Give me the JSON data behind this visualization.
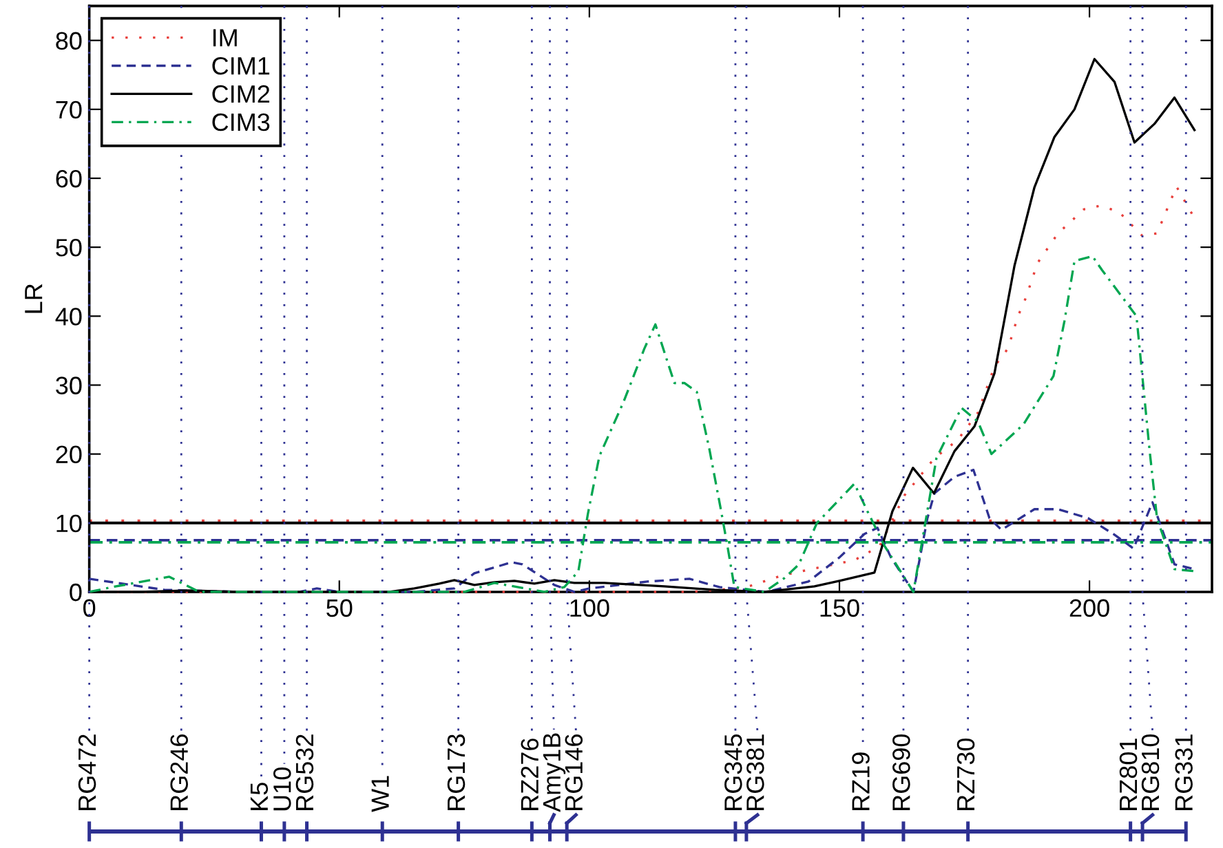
{
  "chart_data": {
    "type": "line",
    "ylabel": "LR",
    "xlim": [
      0,
      224.5
    ],
    "ylim": [
      0,
      85
    ],
    "xticks": [
      0,
      50,
      100,
      150,
      200
    ],
    "yticks": [
      0,
      10,
      20,
      30,
      40,
      50,
      60,
      70,
      80
    ],
    "grid": false,
    "legend": "top left",
    "series": [
      {
        "name": "IM",
        "color": "#e8403c",
        "line_style": "dotted",
        "x": [
          0,
          20,
          40,
          60,
          80,
          100,
          120,
          131,
          138.6,
          145,
          153,
          158,
          163,
          169,
          173.6,
          177.7,
          181,
          183.7,
          185.7,
          187.3,
          189.6,
          193.7,
          198.9,
          202,
          205.8,
          210.5,
          213.5,
          217.4,
          221
        ],
        "values": [
          0,
          0,
          0,
          0,
          0,
          0,
          0,
          0.6,
          2.4,
          3.4,
          4.6,
          6.6,
          14,
          19.4,
          22,
          26,
          32.7,
          35.3,
          40,
          42.7,
          47.7,
          52,
          55.5,
          56,
          55.2,
          51.7,
          52,
          58.8,
          54.2
        ]
      },
      {
        "name": "CIM1",
        "color": "#2e3192",
        "line_style": "dashed",
        "x": [
          0,
          15,
          30,
          42,
          45.5,
          50,
          65,
          73,
          77,
          84.5,
          86.6,
          93,
          97,
          100,
          111.6,
          120,
          126,
          135.5,
          143.8,
          150,
          155,
          157.6,
          160.3,
          164.8,
          167.6,
          169,
          173,
          176.8,
          180,
          182.4,
          189,
          193.7,
          199.7,
          205,
          208.8,
          212.6,
          214.4,
          217,
          221
        ],
        "values": [
          1.9,
          0.3,
          0,
          0,
          0.5,
          0,
          0,
          0.5,
          2.7,
          4.3,
          4,
          1,
          0,
          0.5,
          1.5,
          1.9,
          0.7,
          0,
          1.5,
          5,
          8.4,
          9.3,
          5,
          0,
          10.7,
          14.3,
          16.7,
          17.7,
          10.7,
          9,
          12,
          12,
          10.7,
          8.3,
          6.3,
          13,
          9.3,
          4,
          3.3
        ]
      },
      {
        "name": "CIM2",
        "color": "#000000",
        "line_style": "solid",
        "x": [
          0,
          10,
          20,
          30,
          40,
          50,
          60,
          65,
          70,
          73,
          77,
          81,
          85,
          89,
          93,
          97,
          103,
          115,
          125,
          135,
          145,
          150,
          157,
          160.6,
          164.7,
          168.9,
          173,
          177,
          181,
          185,
          189,
          193,
          197,
          201,
          205,
          209,
          213,
          217,
          221
        ],
        "values": [
          0,
          0,
          0.2,
          0,
          0,
          0,
          0,
          0.5,
          1.2,
          1.7,
          1,
          1.4,
          1.6,
          1.2,
          1.7,
          1.3,
          1.3,
          0.8,
          0.3,
          0,
          0.8,
          1.6,
          2.8,
          11.7,
          18,
          14.3,
          20.4,
          24,
          31.7,
          47.3,
          58.7,
          66,
          70,
          77.3,
          74,
          65.2,
          67.9,
          71.7,
          67
        ]
      },
      {
        "name": "CIM3",
        "color": "#00a651",
        "line_style": "dashdot",
        "x": [
          0,
          4.6,
          16,
          22,
          40,
          60,
          75,
          81,
          91,
          95,
          97.8,
          99.7,
          102,
          106.8,
          111,
          113.2,
          117,
          119,
          121.5,
          124,
          126.2,
          127.6,
          129,
          135,
          139,
          141.9,
          145.5,
          153,
          155.6,
          159,
          164.8,
          169.4,
          174.4,
          177.7,
          180.4,
          186.8,
          192.8,
          195,
          197,
          200.6,
          202.5,
          209.4,
          212,
          213.5,
          217,
          221
        ],
        "values": [
          0,
          0.7,
          2.2,
          0,
          0,
          0,
          0,
          1.3,
          0,
          0.7,
          3,
          11.3,
          19.7,
          27.5,
          35.3,
          38.8,
          30.3,
          30.3,
          29,
          20.7,
          12.3,
          6.7,
          0.7,
          0,
          2,
          4,
          10,
          15.7,
          11.7,
          6.7,
          0,
          19.4,
          26.7,
          24.7,
          20,
          24.3,
          31.3,
          39.3,
          48,
          48.7,
          46.7,
          40,
          20.7,
          10.7,
          3.3,
          3
        ]
      }
    ],
    "ref_lines": [
      {
        "axis": "y",
        "value": 10.3,
        "color": "#e8403c",
        "line_style": "dotted"
      },
      {
        "axis": "y",
        "value": 10,
        "color": "#000000",
        "line_style": "solid"
      },
      {
        "axis": "y",
        "value": 7.5,
        "color": "#2e3192",
        "line_style": "dashed"
      },
      {
        "axis": "y",
        "value": 7.2,
        "color": "#00a651",
        "line_style": "dashdot"
      },
      {
        "axis": "x",
        "value": 0,
        "label": "RG472",
        "color": "#2e3192",
        "line_style": "dotted"
      },
      {
        "axis": "x",
        "value": 18.4,
        "label": "RG246",
        "color": "#2e3192",
        "line_style": "dotted"
      },
      {
        "axis": "x",
        "value": 34.4,
        "label": "K5",
        "color": "#2e3192",
        "line_style": "dotted"
      },
      {
        "axis": "x",
        "value": 39,
        "label": "U10",
        "color": "#2e3192",
        "line_style": "dotted"
      },
      {
        "axis": "x",
        "value": 43.5,
        "label": "RG532",
        "color": "#2e3192",
        "line_style": "dotted"
      },
      {
        "axis": "x",
        "value": 58.6,
        "label": "W1",
        "color": "#2e3192",
        "line_style": "dotted"
      },
      {
        "axis": "x",
        "value": 73.8,
        "label": "RG173",
        "color": "#2e3192",
        "line_style": "dotted"
      },
      {
        "axis": "x",
        "value": 88.5,
        "label": "RZ276",
        "color": "#2e3192",
        "line_style": "dotted"
      },
      {
        "axis": "x",
        "value": 92.1,
        "label": "Amy1B",
        "color": "#2e3192",
        "line_style": "dotted"
      },
      {
        "axis": "x",
        "value": 95.5,
        "label": "RG146",
        "color": "#2e3192",
        "line_style": "dotted"
      },
      {
        "axis": "x",
        "value": 129.2,
        "label": "RG345",
        "color": "#2e3192",
        "line_style": "dotted"
      },
      {
        "axis": "x",
        "value": 131.4,
        "label": "RG381",
        "color": "#2e3192",
        "line_style": "dotted"
      },
      {
        "axis": "x",
        "value": 154.7,
        "label": "RZ19",
        "color": "#2e3192",
        "line_style": "dotted"
      },
      {
        "axis": "x",
        "value": 162.8,
        "label": "RG690",
        "color": "#2e3192",
        "line_style": "dotted"
      },
      {
        "axis": "x",
        "value": 175.7,
        "label": "RZ730",
        "color": "#2e3192",
        "line_style": "dotted"
      },
      {
        "axis": "x",
        "value": 208.2,
        "label": "RZ801",
        "color": "#2e3192",
        "line_style": "dotted"
      },
      {
        "axis": "x",
        "value": 210.6,
        "label": "RG810",
        "color": "#2e3192",
        "line_style": "dotted"
      },
      {
        "axis": "x",
        "value": 219.3,
        "label": "RG331",
        "color": "#2e3192",
        "line_style": "dotted"
      }
    ]
  }
}
